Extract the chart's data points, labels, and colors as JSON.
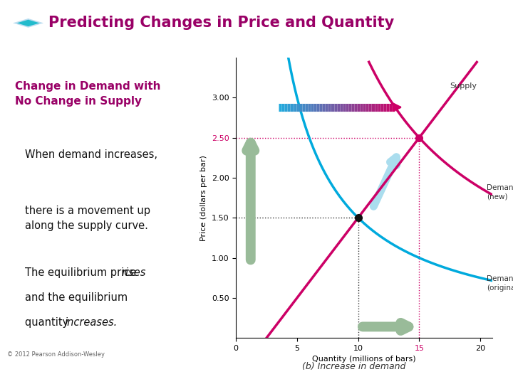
{
  "title": "Predicting Changes in Price and Quantity",
  "title_color": "#990066",
  "background_color": "#ffffff",
  "heading": "Change in Demand with\nNo Change in Supply",
  "heading_color": "#990066",
  "footer": "© 2012 Pearson Addison-Wesley",
  "caption": "(b) Increase in demand",
  "chart": {
    "xlim": [
      0,
      21
    ],
    "ylim": [
      0,
      3.5
    ],
    "xticks": [
      0,
      5,
      10,
      15,
      20
    ],
    "yticks": [
      0.5,
      1.0,
      1.5,
      2.0,
      2.5,
      3.0
    ],
    "xlabel": "Quantity (millions of bars)",
    "ylabel": "Price (dollars per bar)",
    "supply_color": "#cc0066",
    "demand_orig_color": "#00aadd",
    "demand_new_color": "#cc0066",
    "eq1_x": 10,
    "eq1_y": 1.5,
    "eq2_x": 15,
    "eq2_y": 2.5,
    "dotline_black": "#333333",
    "dotline_pink": "#cc0066",
    "green_arrow": "#99bb99",
    "light_blue_arrow": "#aaddee"
  }
}
